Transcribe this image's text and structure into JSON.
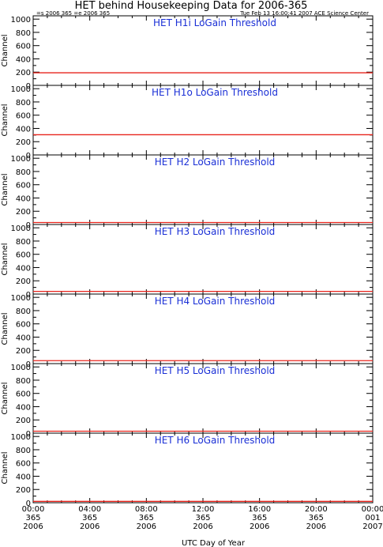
{
  "header": {
    "title": "HET behind Housekeeping Data for 2006-365",
    "left_info": "=s 2006 365   =e 2006 365",
    "right_info": "Tue Feb 13 16:00:41 2007 ACE Science Center"
  },
  "colors": {
    "line": "#e8241c",
    "panel_title": "#1a2fd6",
    "axes": "#000000"
  },
  "chart_data": [
    {
      "type": "line",
      "title": "HET H1i LoGain Threshold",
      "ylabel": "Channel",
      "ylim": [
        0,
        1050
      ],
      "yticks": [
        0,
        200,
        400,
        600,
        800,
        1000
      ],
      "x": [
        0,
        24
      ],
      "series": [
        {
          "values": [
            190,
            190
          ]
        }
      ]
    },
    {
      "type": "line",
      "title": "HET H1o LoGain Threshold",
      "ylabel": "Channel",
      "ylim": [
        0,
        1050
      ],
      "yticks": [
        0,
        200,
        400,
        600,
        800,
        1000
      ],
      "x": [
        0,
        24
      ],
      "series": [
        {
          "values": [
            305,
            305
          ]
        }
      ]
    },
    {
      "type": "line",
      "title": "HET H2 LoGain Threshold",
      "ylabel": "Channel",
      "ylim": [
        0,
        1050
      ],
      "yticks": [
        0,
        200,
        400,
        600,
        800,
        1000
      ],
      "x": [
        0,
        24
      ],
      "series": [
        {
          "values": [
            30,
            30
          ]
        }
      ]
    },
    {
      "type": "line",
      "title": "HET H3 LoGain Threshold",
      "ylabel": "Channel",
      "ylim": [
        0,
        1050
      ],
      "yticks": [
        0,
        200,
        400,
        600,
        800,
        1000
      ],
      "x": [
        0,
        24
      ],
      "series": [
        {
          "values": [
            40,
            40
          ]
        }
      ]
    },
    {
      "type": "line",
      "title": "HET H4 LoGain Threshold",
      "ylabel": "Channel",
      "ylim": [
        0,
        1050
      ],
      "yticks": [
        0,
        200,
        400,
        600,
        800,
        1000
      ],
      "x": [
        0,
        24
      ],
      "series": [
        {
          "values": [
            45,
            45
          ]
        }
      ]
    },
    {
      "type": "line",
      "title": "HET H5 LoGain Threshold",
      "ylabel": "Channel",
      "ylim": [
        0,
        1050
      ],
      "yticks": [
        0,
        200,
        400,
        600,
        800,
        1000
      ],
      "x": [
        0,
        24
      ],
      "series": [
        {
          "values": [
            30,
            30
          ]
        }
      ]
    },
    {
      "type": "line",
      "title": "HET H6 LoGain Threshold",
      "ylabel": "Channel",
      "ylim": [
        0,
        1050
      ],
      "yticks": [
        0,
        200,
        400,
        600,
        800,
        1000
      ],
      "x": [
        0,
        24
      ],
      "series": [
        {
          "values": [
            20,
            20
          ]
        }
      ]
    }
  ],
  "x_axis": {
    "label": "UTC Day of Year",
    "range_hours": [
      0,
      24
    ],
    "ticks": [
      {
        "hour": 0,
        "time": "00:00",
        "doy": "365",
        "year": "2006"
      },
      {
        "hour": 4,
        "time": "04:00",
        "doy": "365",
        "year": "2006"
      },
      {
        "hour": 8,
        "time": "08:00",
        "doy": "365",
        "year": "2006"
      },
      {
        "hour": 12,
        "time": "12:00",
        "doy": "365",
        "year": "2006"
      },
      {
        "hour": 16,
        "time": "16:00",
        "doy": "365",
        "year": "2006"
      },
      {
        "hour": 20,
        "time": "20:00",
        "doy": "365",
        "year": "2006"
      },
      {
        "hour": 24,
        "time": "00:00",
        "doy": "001",
        "year": "2007"
      }
    ]
  }
}
